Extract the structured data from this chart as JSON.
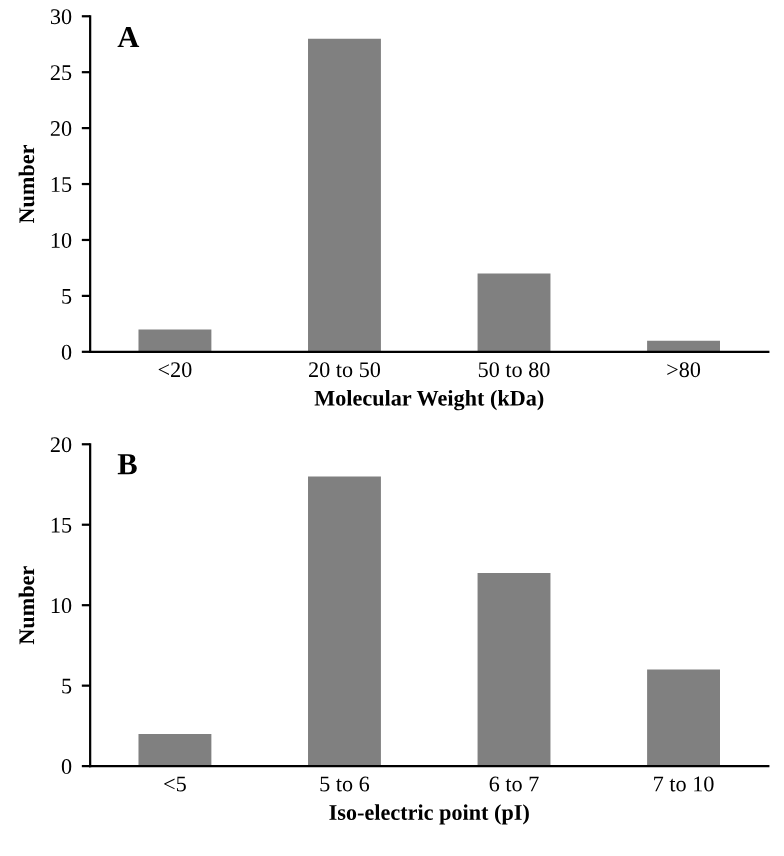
{
  "chart_data": [
    {
      "type": "bar",
      "title": "A",
      "xlabel": "Molecular Weight (kDa)",
      "ylabel": "Number",
      "categories": [
        "<20",
        "20 to 50",
        "50 to 80",
        ">80"
      ],
      "values": [
        2,
        28,
        7,
        1
      ],
      "color": "#808080",
      "ylim": [
        0,
        30
      ],
      "yticks": [
        0,
        5,
        10,
        15,
        20,
        25,
        30
      ],
      "grid": false,
      "legend": false
    },
    {
      "type": "bar",
      "title": "B",
      "xlabel": "Iso-electric point (pI)",
      "ylabel": "Number",
      "categories": [
        "<5",
        "5 to 6",
        "6 to 7",
        "7 to 10"
      ],
      "values": [
        2,
        18,
        12,
        6
      ],
      "color": "#808080",
      "ylim": [
        0,
        20
      ],
      "yticks": [
        0,
        5,
        10,
        15,
        20
      ],
      "grid": false,
      "legend": false
    }
  ]
}
